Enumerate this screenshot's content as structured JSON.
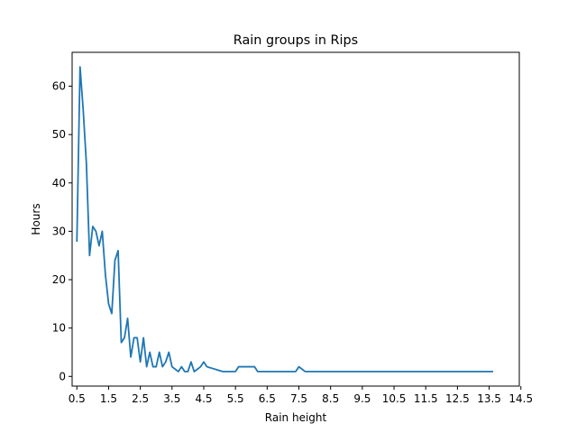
{
  "chart_data": {
    "type": "line",
    "title": "Rain groups in Rips",
    "xlabel": "Rain height",
    "ylabel": "Hours",
    "xlim": [
      0.35,
      14.45
    ],
    "ylim": [
      -2.0,
      67.0
    ],
    "xticks": [
      0.5,
      1.5,
      2.5,
      3.5,
      4.5,
      5.5,
      6.5,
      7.5,
      8.5,
      9.5,
      10.5,
      11.5,
      12.5,
      13.5,
      14.5
    ],
    "xtick_labels": [
      "0.5",
      "1.5",
      "2.5",
      "3.5",
      "4.5",
      "5.5",
      "6.5",
      "7.5",
      "8.5",
      "9.5",
      "10.5",
      "11.5",
      "12.5",
      "13.5",
      "14.5"
    ],
    "yticks": [
      0,
      10,
      20,
      30,
      40,
      50,
      60
    ],
    "ytick_labels": [
      "0",
      "10",
      "20",
      "30",
      "40",
      "50",
      "60"
    ],
    "grid": false,
    "legend": "none",
    "line_color": "#1f77b4",
    "series": [
      {
        "x": [
          0.5,
          0.6,
          0.7,
          0.8,
          0.9,
          1.0,
          1.1,
          1.2,
          1.3,
          1.4,
          1.5,
          1.6,
          1.7,
          1.8,
          1.9,
          2.0,
          2.1,
          2.2,
          2.3,
          2.4,
          2.5,
          2.6,
          2.7,
          2.8,
          2.9,
          3.0,
          3.1,
          3.2,
          3.3,
          3.4,
          3.5,
          3.6,
          3.7,
          3.8,
          3.9,
          4.0,
          4.1,
          4.2,
          4.3,
          4.4,
          4.5,
          4.6,
          4.7,
          4.8,
          4.9,
          5.0,
          5.1,
          5.2,
          5.3,
          5.4,
          5.5,
          5.6,
          5.7,
          5.8,
          5.9,
          6.0,
          6.1,
          6.2,
          6.3,
          6.4,
          6.5,
          6.6,
          6.7,
          6.8,
          6.9,
          7.0,
          7.1,
          7.2,
          7.3,
          7.4,
          7.5,
          7.6,
          7.7,
          7.8,
          7.9,
          8.0,
          8.5,
          9.0,
          9.5,
          10.0,
          10.5,
          11.0,
          11.5,
          12.0,
          12.5,
          13.0,
          13.5,
          13.6
        ],
        "y": [
          28,
          64,
          55,
          44,
          25,
          31,
          30,
          27,
          30,
          21,
          15,
          13,
          24,
          26,
          7,
          8,
          12,
          4,
          8,
          8,
          3,
          8,
          2,
          5,
          2,
          2,
          5,
          2,
          3,
          5,
          2,
          1.5,
          1,
          2,
          1,
          1,
          3,
          1,
          1.5,
          2,
          3,
          2,
          1.8,
          1.6,
          1.4,
          1.2,
          1,
          1,
          1,
          1,
          1,
          2,
          2,
          2,
          2,
          2,
          2,
          1,
          1,
          1,
          1,
          1,
          1,
          1,
          1,
          1,
          1,
          1,
          1,
          1,
          2,
          1.5,
          1,
          1,
          1,
          1,
          1,
          1,
          1,
          1,
          1,
          1,
          1,
          1,
          1,
          1,
          1,
          1
        ]
      }
    ]
  }
}
